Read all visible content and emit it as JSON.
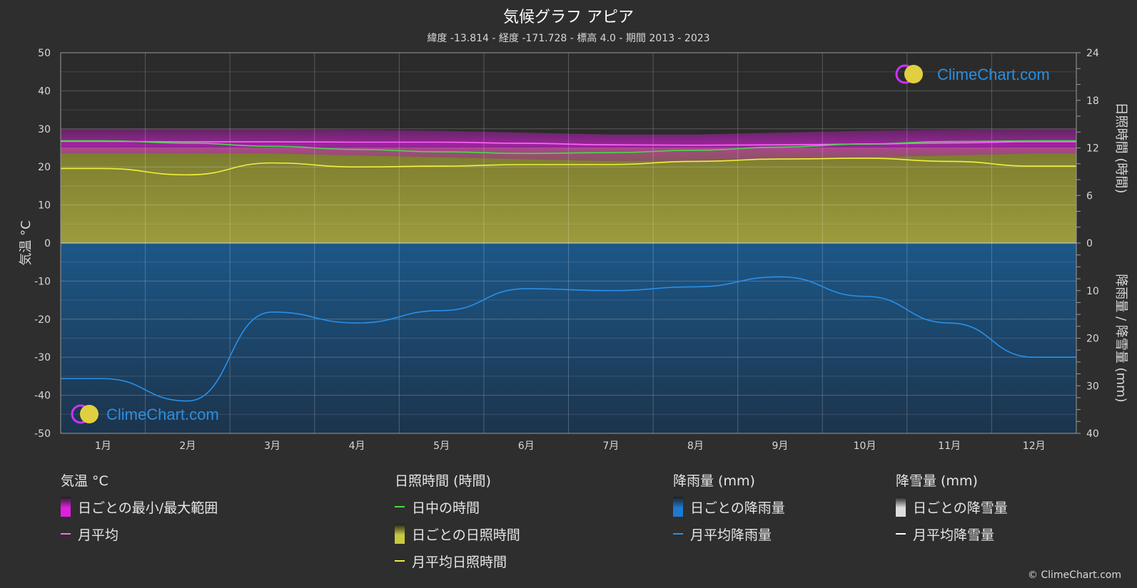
{
  "title": "気候グラフ アピア",
  "subtitle": "緯度 -13.814 - 経度 -171.728 - 標高 4.0 - 期間 2013 - 2023",
  "watermark": "ClimeChart.com",
  "copyright": "© ClimeChart.com",
  "colors": {
    "background": "#2e2e2e",
    "temp_range": "#e020e0",
    "temp_avg": "#ff66ff",
    "daylight": "#44dd44",
    "sunshine_fill": "#a8a83a",
    "sunshine_avg": "#f0f040",
    "rain_fill": "#1e6aa8",
    "rain_avg": "#2a90e8",
    "snow_avg": "#ffffff",
    "watermark_text": "#2b8fe0"
  },
  "chart_data": {
    "type": "line",
    "categories": [
      "1月",
      "2月",
      "3月",
      "4月",
      "5月",
      "6月",
      "7月",
      "8月",
      "9月",
      "10月",
      "11月",
      "12月"
    ],
    "left_axis": {
      "label": "気温 °C",
      "ticks": [
        50,
        40,
        30,
        20,
        10,
        0,
        -10,
        -20,
        -30,
        -40,
        -50
      ],
      "range": [
        -50,
        50
      ]
    },
    "right_axis_top": {
      "label": "日照時間 (時間)",
      "ticks": [
        24,
        18,
        12,
        6,
        0
      ],
      "range": [
        0,
        24
      ]
    },
    "right_axis_bottom": {
      "label": "降雨量 / 降雪量 (mm)",
      "ticks": [
        0,
        10,
        20,
        30,
        40
      ],
      "range": [
        0,
        40
      ]
    },
    "grid": true,
    "series": [
      {
        "name": "月平均",
        "axis": "temp",
        "values": [
          26.7,
          26.6,
          26.6,
          26.5,
          26.5,
          26.2,
          25.8,
          25.7,
          25.8,
          26.0,
          26.3,
          26.6
        ]
      },
      {
        "name": "日中の時間",
        "axis": "sun",
        "values": [
          12.9,
          12.6,
          12.2,
          11.8,
          11.5,
          11.3,
          11.4,
          11.7,
          12.1,
          12.5,
          12.8,
          12.9
        ]
      },
      {
        "name": "月平均日照時間",
        "axis": "sun",
        "values": [
          9.4,
          8.6,
          10.1,
          9.6,
          9.7,
          9.9,
          9.9,
          10.3,
          10.6,
          10.7,
          10.3,
          9.7
        ]
      },
      {
        "name": "月平均降雨量",
        "axis": "rain",
        "values": [
          28.5,
          33.2,
          14.5,
          16.8,
          14.2,
          9.6,
          10.0,
          9.2,
          7.1,
          11.2,
          16.8,
          24.0
        ]
      },
      {
        "name": "月平均降雪量",
        "axis": "rain",
        "values": [
          0,
          0,
          0,
          0,
          0,
          0,
          0,
          0,
          0,
          0,
          0,
          0
        ]
      }
    ],
    "temp_range": {
      "name": "日ごとの最小/最大範囲",
      "min": [
        23.5,
        23.5,
        23.5,
        23.0,
        22.5,
        22.0,
        21.5,
        21.5,
        22.0,
        22.5,
        23.0,
        23.5
      ],
      "max": [
        30.0,
        30.0,
        30.0,
        29.8,
        29.5,
        29.0,
        28.5,
        28.5,
        29.0,
        29.5,
        29.8,
        30.0
      ]
    },
    "sunshine_daily_max": 12.0,
    "rain_daily_typical": 40
  },
  "legend": {
    "groups": [
      {
        "title": "気温 °C",
        "items": [
          {
            "label": "日ごとの最小/最大範囲",
            "kind": "box",
            "color": "#e020e0"
          },
          {
            "label": "月平均",
            "kind": "line",
            "color": "#ff66ff"
          }
        ]
      },
      {
        "title": "日照時間 (時間)",
        "items": [
          {
            "label": "日中の時間",
            "kind": "line",
            "color": "#44dd44"
          },
          {
            "label": "日ごとの日照時間",
            "kind": "box",
            "color": "#c8c840"
          },
          {
            "label": "月平均日照時間",
            "kind": "line",
            "color": "#f0f040"
          }
        ]
      },
      {
        "title": "降雨量 (mm)",
        "items": [
          {
            "label": "日ごとの降雨量",
            "kind": "box",
            "color": "#1e7ad0"
          },
          {
            "label": "月平均降雨量",
            "kind": "line",
            "color": "#2a90e8"
          }
        ]
      },
      {
        "title": "降雪量 (mm)",
        "items": [
          {
            "label": "日ごとの降雪量",
            "kind": "box",
            "color": "#dddddd"
          },
          {
            "label": "月平均降雪量",
            "kind": "line",
            "color": "#ffffff"
          }
        ]
      }
    ]
  }
}
